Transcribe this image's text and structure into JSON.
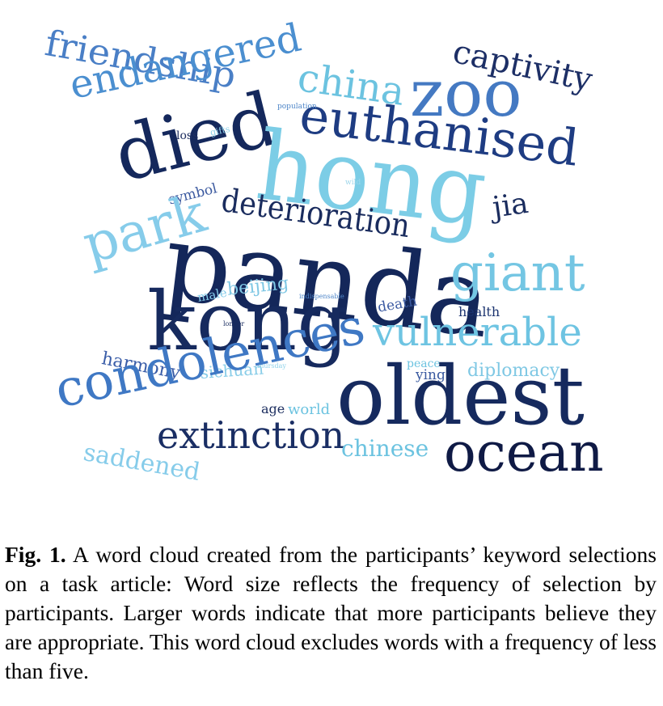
{
  "figure": {
    "label": "Fig. 1.",
    "caption": "A word cloud created from the participants’ keyword selections on a task article: Word size reflects the frequency of selection by participants. Larger words indicate that more participants believe they are appropriate. This word cloud excludes words with a frequency of less than five."
  },
  "word_cloud": {
    "words": [
      {
        "text": "friendship",
        "color": "#4a7fc6"
      },
      {
        "text": "captivity",
        "color": "#1d2f66"
      },
      {
        "text": "endangered",
        "color": "#4b8fd0"
      },
      {
        "text": "china",
        "color": "#6cc3e0"
      },
      {
        "text": "zoo",
        "color": "#4479c2"
      },
      {
        "text": "euthanised",
        "color": "#1e3c82"
      },
      {
        "text": "died",
        "color": "#14285c"
      },
      {
        "text": "hong",
        "color": "#7ccde6"
      },
      {
        "text": "population",
        "color": "#4f86c8"
      },
      {
        "text": "loss",
        "color": "#1f2f60"
      },
      {
        "text": "gifts",
        "color": "#8fd2ea"
      },
      {
        "text": "wild",
        "color": "#9ed6ea"
      },
      {
        "text": "symbol",
        "color": "#3c5aa0"
      },
      {
        "text": "deterioration",
        "color": "#1a2c5e"
      },
      {
        "text": "jia",
        "color": "#1a2c5e"
      },
      {
        "text": "park",
        "color": "#86ccea"
      },
      {
        "text": "panda",
        "color": "#14275a"
      },
      {
        "text": "giant",
        "color": "#74c6e3"
      },
      {
        "text": "beijing",
        "color": "#7fc7e4"
      },
      {
        "text": "male",
        "color": "#86ccea"
      },
      {
        "text": "indispensable",
        "color": "#4f86c8"
      },
      {
        "text": "death",
        "color": "#3b5aa2"
      },
      {
        "text": "health",
        "color": "#1c3470"
      },
      {
        "text": "longer",
        "color": "#1c2f62"
      },
      {
        "text": "kong",
        "color": "#162a5e"
      },
      {
        "text": "vulnerable",
        "color": "#6ec4e2"
      },
      {
        "text": "harmony",
        "color": "#3a5da8"
      },
      {
        "text": "thursday",
        "color": "#8fd2ea"
      },
      {
        "text": "sichuan",
        "color": "#89cde8"
      },
      {
        "text": "peace",
        "color": "#6cc3e0"
      },
      {
        "text": "ying",
        "color": "#3a5aa0"
      },
      {
        "text": "diplomacy",
        "color": "#7fc8e4"
      },
      {
        "text": "condolences",
        "color": "#3f78c4"
      },
      {
        "text": "oldest",
        "color": "#162a5e"
      },
      {
        "text": "age",
        "color": "#1a2c5e"
      },
      {
        "text": "world",
        "color": "#6cc3e0"
      },
      {
        "text": "extinction",
        "color": "#1a2e64"
      },
      {
        "text": "chinese",
        "color": "#6cc3e0"
      },
      {
        "text": "ocean",
        "color": "#0f1a45"
      },
      {
        "text": "saddened",
        "color": "#86ccea"
      }
    ]
  }
}
